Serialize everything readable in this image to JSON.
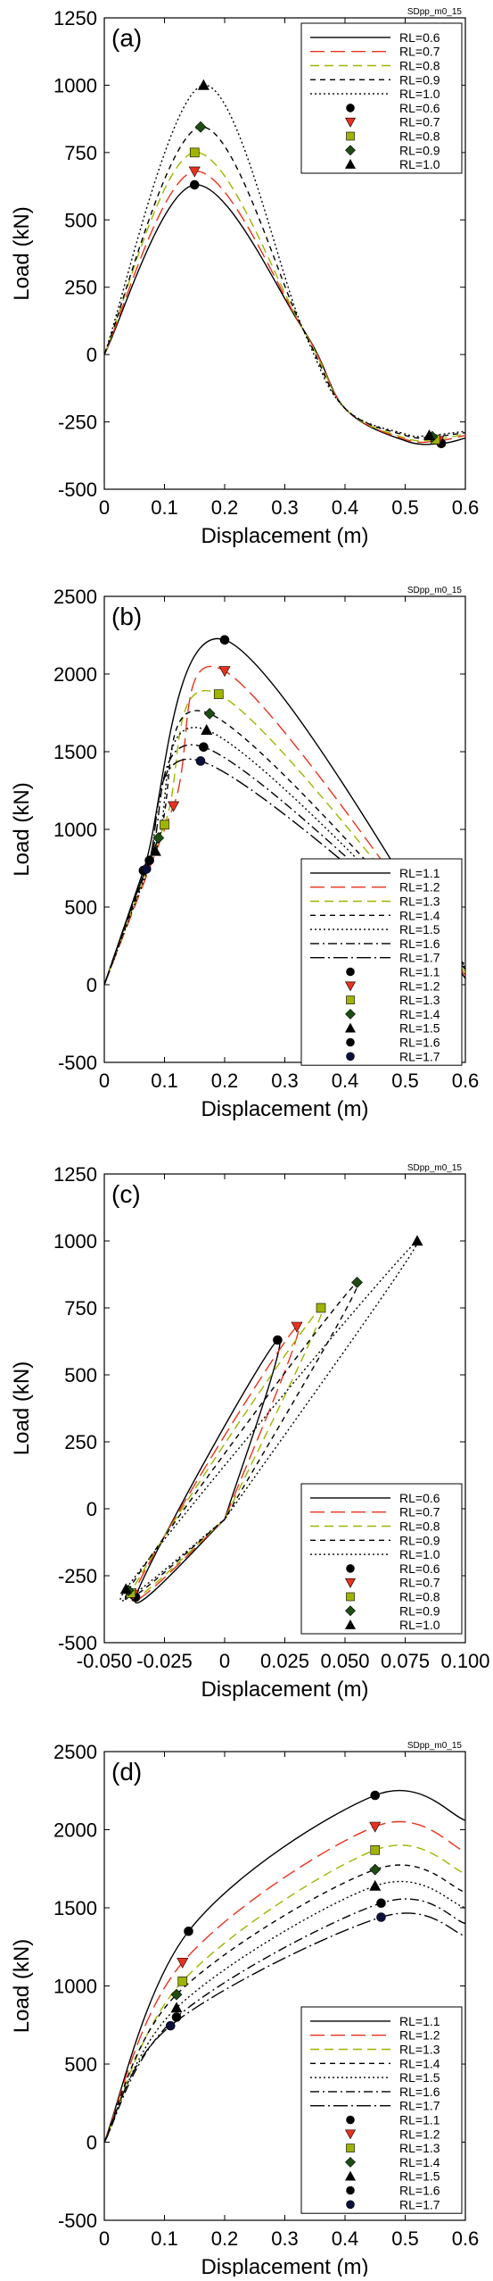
{
  "chart_data": [
    {
      "type": "line",
      "panel_label": "(a)",
      "corner_tag": "SDpp_m0_15",
      "xlabel": "Displacement (m)",
      "ylabel": "Load (kN)",
      "xlim": [
        0,
        0.6
      ],
      "ylim": [
        -500,
        1250
      ],
      "x_ticks": [
        "0",
        "0.1",
        "0.2",
        "0.3",
        "0.4",
        "0.5",
        "0.6"
      ],
      "y_ticks": [
        "-500",
        "-250",
        "0",
        "250",
        "500",
        "750",
        "1000",
        "1250"
      ],
      "grid": false,
      "legend_position": "top-right",
      "curve_shape": "hump",
      "series": [
        {
          "name": "RL=0.6",
          "color": "#000000",
          "dash": "solid",
          "x": [
            0,
            0.15,
            0.33,
            0.4,
            0.5,
            0.56,
            0.6
          ],
          "y": [
            0,
            630,
            95,
            -200,
            -320,
            -330,
            -310
          ]
        },
        {
          "name": "RL=0.7",
          "color": "#e8321e",
          "dash": "long-dash",
          "x": [
            0,
            0.15,
            0.33,
            0.4,
            0.5,
            0.555,
            0.6
          ],
          "y": [
            0,
            680,
            95,
            -200,
            -315,
            -320,
            -300
          ]
        },
        {
          "name": "RL=0.8",
          "color": "#9fb400",
          "dash": "dash",
          "x": [
            0,
            0.15,
            0.33,
            0.4,
            0.5,
            0.55,
            0.6
          ],
          "y": [
            0,
            750,
            95,
            -200,
            -310,
            -315,
            -295
          ]
        },
        {
          "name": "RL=0.9",
          "color": "#000000",
          "dash": "short-dash",
          "x": [
            0,
            0.16,
            0.33,
            0.4,
            0.5,
            0.545,
            0.6
          ],
          "y": [
            0,
            845,
            95,
            -200,
            -300,
            -305,
            -290
          ]
        },
        {
          "name": "RL=1.0",
          "color": "#000000",
          "dash": "dot",
          "x": [
            0,
            0.165,
            0.33,
            0.4,
            0.5,
            0.54,
            0.6
          ],
          "y": [
            0,
            1000,
            95,
            -200,
            -295,
            -300,
            -285
          ]
        }
      ],
      "markers": [
        {
          "name": "RL=0.6",
          "shape": "circle",
          "color": "#000000",
          "points": [
            [
              0.15,
              630
            ],
            [
              0.56,
              -330
            ]
          ]
        },
        {
          "name": "RL=0.7",
          "shape": "triangle-down",
          "color": "#e8321e",
          "points": [
            [
              0.15,
              680
            ],
            [
              0.555,
              -320
            ]
          ]
        },
        {
          "name": "RL=0.8",
          "shape": "square",
          "color": "#9fb400",
          "points": [
            [
              0.15,
              750
            ],
            [
              0.55,
              -315
            ]
          ]
        },
        {
          "name": "RL=0.9",
          "shape": "diamond",
          "color": "#1e4d14",
          "points": [
            [
              0.16,
              845
            ],
            [
              0.545,
              -305
            ]
          ]
        },
        {
          "name": "RL=1.0",
          "shape": "triangle-up",
          "color": "#000000",
          "points": [
            [
              0.165,
              1000
            ],
            [
              0.54,
              -300
            ]
          ]
        }
      ]
    },
    {
      "type": "line",
      "panel_label": "(b)",
      "corner_tag": "SDpp_m0_15",
      "xlabel": "Displacement (m)",
      "ylabel": "Load (kN)",
      "xlim": [
        0,
        0.6
      ],
      "ylim": [
        -500,
        2500
      ],
      "x_ticks": [
        "0",
        "0.1",
        "0.2",
        "0.3",
        "0.4",
        "0.5",
        "0.6"
      ],
      "y_ticks": [
        "-500",
        "0",
        "500",
        "1000",
        "1500",
        "2000",
        "2500"
      ],
      "grid": false,
      "legend_position": "bottom-right",
      "curve_shape": "peak-drop",
      "series": [
        {
          "name": "RL=1.1",
          "color": "#000000",
          "dash": "solid",
          "x": [
            0,
            0.065,
            0.2,
            0.6
          ],
          "y": [
            0,
            735,
            2220,
            40
          ]
        },
        {
          "name": "RL=1.2",
          "color": "#e8321e",
          "dash": "long-dash",
          "x": [
            0,
            0.115,
            0.2,
            0.6
          ],
          "y": [
            0,
            1150,
            2020,
            60
          ]
        },
        {
          "name": "RL=1.3",
          "color": "#9fb400",
          "dash": "dash",
          "x": [
            0,
            0.1,
            0.19,
            0.6
          ],
          "y": [
            0,
            1030,
            1870,
            80
          ]
        },
        {
          "name": "RL=1.4",
          "color": "#000000",
          "dash": "short-dash",
          "x": [
            0,
            0.09,
            0.175,
            0.6
          ],
          "y": [
            0,
            945,
            1745,
            100
          ]
        },
        {
          "name": "RL=1.5",
          "color": "#000000",
          "dash": "dot",
          "x": [
            0,
            0.085,
            0.17,
            0.6
          ],
          "y": [
            0,
            860,
            1640,
            110
          ]
        },
        {
          "name": "RL=1.6",
          "color": "#000000",
          "dash": "dash-dot",
          "x": [
            0,
            0.075,
            0.165,
            0.6
          ],
          "y": [
            0,
            800,
            1530,
            120
          ]
        },
        {
          "name": "RL=1.7",
          "color": "#000000",
          "dash": "long-dash-dot",
          "x": [
            0,
            0.07,
            0.16,
            0.6
          ],
          "y": [
            0,
            745,
            1440,
            130
          ]
        }
      ],
      "markers": [
        {
          "name": "RL=1.1",
          "shape": "circle",
          "color": "#000000",
          "points": [
            [
              0.065,
              735
            ],
            [
              0.2,
              2220
            ]
          ]
        },
        {
          "name": "RL=1.2",
          "shape": "triangle-down",
          "color": "#e8321e",
          "points": [
            [
              0.115,
              1150
            ],
            [
              0.2,
              2020
            ]
          ]
        },
        {
          "name": "RL=1.3",
          "shape": "square",
          "color": "#9fb400",
          "points": [
            [
              0.1,
              1030
            ],
            [
              0.19,
              1870
            ]
          ]
        },
        {
          "name": "RL=1.4",
          "shape": "diamond",
          "color": "#1e4d14",
          "points": [
            [
              0.09,
              945
            ],
            [
              0.175,
              1745
            ]
          ]
        },
        {
          "name": "RL=1.5",
          "shape": "triangle-up",
          "color": "#000000",
          "points": [
            [
              0.085,
              860
            ],
            [
              0.17,
              1640
            ]
          ]
        },
        {
          "name": "RL=1.6",
          "shape": "circle",
          "color": "#000000",
          "points": [
            [
              0.075,
              800
            ],
            [
              0.165,
              1530
            ]
          ]
        },
        {
          "name": "RL=1.7",
          "shape": "circle",
          "color": "#0a0f3c",
          "points": [
            [
              0.07,
              745
            ],
            [
              0.16,
              1440
            ]
          ]
        }
      ]
    },
    {
      "type": "line",
      "panel_label": "(c)",
      "corner_tag": "SDpp_m0_15",
      "xlabel": "Displacement (m)",
      "ylabel": "Load (kN)",
      "xlim": [
        -0.05,
        0.1
      ],
      "ylim": [
        -500,
        1250
      ],
      "x_ticks": [
        "-0.050",
        "-0.025",
        "0",
        "0.025",
        "0.050",
        "0.075",
        "0.100"
      ],
      "y_ticks": [
        "-500",
        "-250",
        "0",
        "250",
        "500",
        "750",
        "1000",
        "1250"
      ],
      "grid": false,
      "legend_position": "bottom-right",
      "curve_shape": "loop",
      "series": [
        {
          "name": "RL=0.6",
          "color": "#000000",
          "dash": "solid",
          "x": [
            0,
            -0.037,
            0.022,
            0
          ],
          "y": [
            -40,
            -330,
            630,
            -40
          ]
        },
        {
          "name": "RL=0.7",
          "color": "#e8321e",
          "dash": "long-dash",
          "x": [
            0,
            -0.038,
            0.03,
            0
          ],
          "y": [
            -40,
            -320,
            680,
            -40
          ]
        },
        {
          "name": "RL=0.8",
          "color": "#9fb400",
          "dash": "dash",
          "x": [
            0,
            -0.039,
            0.04,
            0
          ],
          "y": [
            -40,
            -315,
            750,
            -40
          ]
        },
        {
          "name": "RL=0.9",
          "color": "#000000",
          "dash": "short-dash",
          "x": [
            0,
            -0.04,
            0.055,
            0
          ],
          "y": [
            -40,
            -305,
            845,
            -40
          ]
        },
        {
          "name": "RL=1.0",
          "color": "#000000",
          "dash": "dot",
          "x": [
            0,
            -0.041,
            0.08,
            0
          ],
          "y": [
            -40,
            -300,
            1000,
            -40
          ]
        }
      ],
      "markers": [
        {
          "name": "RL=0.6",
          "shape": "circle",
          "color": "#000000",
          "points": [
            [
              0.022,
              630
            ],
            [
              -0.037,
              -330
            ]
          ]
        },
        {
          "name": "RL=0.7",
          "shape": "triangle-down",
          "color": "#e8321e",
          "points": [
            [
              0.03,
              680
            ],
            [
              -0.038,
              -320
            ]
          ]
        },
        {
          "name": "RL=0.8",
          "shape": "square",
          "color": "#9fb400",
          "points": [
            [
              0.04,
              750
            ],
            [
              -0.039,
              -315
            ]
          ]
        },
        {
          "name": "RL=0.9",
          "shape": "diamond",
          "color": "#1e4d14",
          "points": [
            [
              0.055,
              845
            ],
            [
              -0.04,
              -305
            ]
          ]
        },
        {
          "name": "RL=1.0",
          "shape": "triangle-up",
          "color": "#000000",
          "points": [
            [
              0.08,
              1000
            ],
            [
              -0.041,
              -300
            ]
          ]
        }
      ]
    },
    {
      "type": "line",
      "panel_label": "(d)",
      "corner_tag": "SDpp_m0_15",
      "xlabel": "Displacement (m)",
      "ylabel": "Load (kN)",
      "xlim": [
        0,
        0.6
      ],
      "ylim": [
        -500,
        2500
      ],
      "x_ticks": [
        "0",
        "0.1",
        "0.2",
        "0.3",
        "0.4",
        "0.5",
        "0.6"
      ],
      "y_ticks": [
        "-500",
        "0",
        "500",
        "1000",
        "1500",
        "2000",
        "2500"
      ],
      "grid": false,
      "legend_position": "bottom-right",
      "curve_shape": "rise",
      "series": [
        {
          "name": "RL=1.1",
          "color": "#000000",
          "dash": "solid",
          "x": [
            0,
            0.14,
            0.45,
            0.6
          ],
          "y": [
            0,
            1350,
            2220,
            2060
          ]
        },
        {
          "name": "RL=1.2",
          "color": "#e8321e",
          "dash": "long-dash",
          "x": [
            0,
            0.13,
            0.45,
            0.6
          ],
          "y": [
            0,
            1150,
            2020,
            1860
          ]
        },
        {
          "name": "RL=1.3",
          "color": "#9fb400",
          "dash": "dash",
          "x": [
            0,
            0.13,
            0.45,
            0.6
          ],
          "y": [
            0,
            1030,
            1870,
            1720
          ]
        },
        {
          "name": "RL=1.4",
          "color": "#000000",
          "dash": "short-dash",
          "x": [
            0,
            0.12,
            0.45,
            0.6
          ],
          "y": [
            0,
            945,
            1745,
            1600
          ]
        },
        {
          "name": "RL=1.5",
          "color": "#000000",
          "dash": "dot",
          "x": [
            0,
            0.12,
            0.45,
            0.6
          ],
          "y": [
            0,
            860,
            1640,
            1500
          ]
        },
        {
          "name": "RL=1.6",
          "color": "#000000",
          "dash": "dash-dot",
          "x": [
            0,
            0.12,
            0.46,
            0.6
          ],
          "y": [
            0,
            800,
            1530,
            1400
          ]
        },
        {
          "name": "RL=1.7",
          "color": "#000000",
          "dash": "long-dash-dot",
          "x": [
            0,
            0.11,
            0.46,
            0.6
          ],
          "y": [
            0,
            745,
            1440,
            1320
          ]
        }
      ],
      "markers": [
        {
          "name": "RL=1.1",
          "shape": "circle",
          "color": "#000000",
          "points": [
            [
              0.14,
              1350
            ],
            [
              0.45,
              2220
            ]
          ]
        },
        {
          "name": "RL=1.2",
          "shape": "triangle-down",
          "color": "#e8321e",
          "points": [
            [
              0.13,
              1150
            ],
            [
              0.45,
              2020
            ]
          ]
        },
        {
          "name": "RL=1.3",
          "shape": "square",
          "color": "#9fb400",
          "points": [
            [
              0.13,
              1030
            ],
            [
              0.45,
              1870
            ]
          ]
        },
        {
          "name": "RL=1.4",
          "shape": "diamond",
          "color": "#1e4d14",
          "points": [
            [
              0.12,
              945
            ],
            [
              0.45,
              1745
            ]
          ]
        },
        {
          "name": "RL=1.5",
          "shape": "triangle-up",
          "color": "#000000",
          "points": [
            [
              0.12,
              860
            ],
            [
              0.45,
              1640
            ]
          ]
        },
        {
          "name": "RL=1.6",
          "shape": "circle",
          "color": "#000000",
          "points": [
            [
              0.12,
              800
            ],
            [
              0.46,
              1530
            ]
          ]
        },
        {
          "name": "RL=1.7",
          "shape": "circle",
          "color": "#0a0f3c",
          "points": [
            [
              0.11,
              745
            ],
            [
              0.46,
              1440
            ]
          ]
        }
      ]
    }
  ]
}
